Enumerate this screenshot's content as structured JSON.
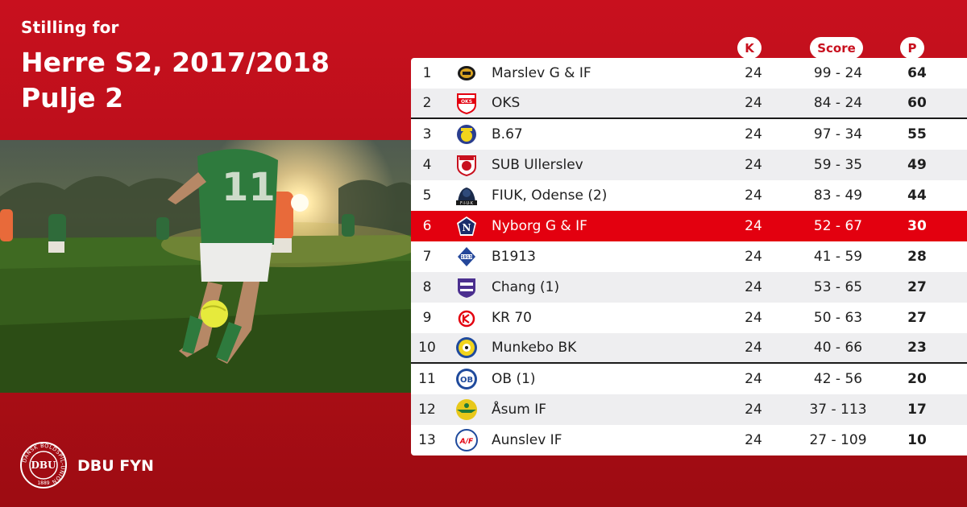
{
  "header": {
    "subtitle": "Stilling for",
    "title_line1": "Herre S2, 2017/2018",
    "title_line2": "Pulje 2"
  },
  "columns": {
    "played": "K",
    "score": "Score",
    "points": "P"
  },
  "rows": [
    {
      "pos": "1",
      "team": "Marslev G & IF",
      "played": "24",
      "score": "99 - 24",
      "points": "64",
      "crest": "marslev-crest-icon",
      "crest_color": "#d9a321"
    },
    {
      "pos": "2",
      "team": "OKS",
      "played": "24",
      "score": "84 - 24",
      "points": "60",
      "crest": "oks-crest-icon",
      "crest_color": "#e3000f"
    },
    {
      "pos": "3",
      "team": "B.67",
      "played": "24",
      "score": "97 - 34",
      "points": "55",
      "crest": "b67-crest-icon",
      "crest_color": "#2a3e8f"
    },
    {
      "pos": "4",
      "team": "SUB Ullerslev",
      "played": "24",
      "score": "59 - 35",
      "points": "49",
      "crest": "sub-crest-icon",
      "crest_color": "#c8101e"
    },
    {
      "pos": "5",
      "team": "FIUK, Odense (2)",
      "played": "24",
      "score": "83 - 49",
      "points": "44",
      "crest": "fiuk-crest-icon",
      "crest_color": "#1a2a4a"
    },
    {
      "pos": "6",
      "team": "Nyborg G & IF",
      "played": "24",
      "score": "52 - 67",
      "points": "30",
      "crest": "nyborg-crest-icon",
      "crest_color": "#1c2d6b"
    },
    {
      "pos": "7",
      "team": "B1913",
      "played": "24",
      "score": "41 - 59",
      "points": "28",
      "crest": "b1913-crest-icon",
      "crest_color": "#24479a"
    },
    {
      "pos": "8",
      "team": "Chang (1)",
      "played": "24",
      "score": "53 - 65",
      "points": "27",
      "crest": "chang-crest-icon",
      "crest_color": "#4b2f8f"
    },
    {
      "pos": "9",
      "team": "KR 70",
      "played": "24",
      "score": "50 - 63",
      "points": "27",
      "crest": "kr70-crest-icon",
      "crest_color": "#e3000f"
    },
    {
      "pos": "10",
      "team": "Munkebo BK",
      "played": "24",
      "score": "40 - 66",
      "points": "23",
      "crest": "munkebo-crest-icon",
      "crest_color": "#f2d41c"
    },
    {
      "pos": "11",
      "team": "OB (1)",
      "played": "24",
      "score": "42 - 56",
      "points": "20",
      "crest": "ob-crest-icon",
      "crest_color": "#1f4a9c"
    },
    {
      "pos": "12",
      "team": "Åsum IF",
      "played": "24",
      "score": "37 - 113",
      "points": "17",
      "crest": "asum-crest-icon",
      "crest_color": "#e8c81a"
    },
    {
      "pos": "13",
      "team": "Aunslev IF",
      "played": "24",
      "score": "27 - 109",
      "points": "10",
      "crest": "aunslev-crest-icon",
      "crest_color": "#1f4a9c"
    }
  ],
  "footer": {
    "org_name": "DBU FYN",
    "logo_text": "DBU",
    "logo_ring_text": "DANSK BOLDSPIL-UNION",
    "logo_year": "1889"
  },
  "colors": {
    "brand_red": "#c8101e",
    "highlight_red": "#e3000f",
    "row_alt": "#eeeef0"
  }
}
